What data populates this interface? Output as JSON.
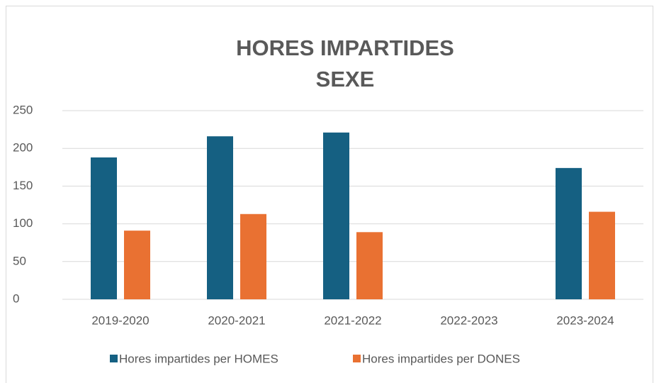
{
  "chart_data": {
    "type": "bar",
    "title": [
      "HORES IMPARTIDES",
      "SEXE"
    ],
    "categories": [
      "2019-2020",
      "2020-2021",
      "2021-2022",
      "2022-2023",
      "2023-2024"
    ],
    "series": [
      {
        "name": "Hores impartides per HOMES",
        "color": "#156082",
        "values": [
          188,
          216,
          221,
          null,
          174
        ]
      },
      {
        "name": "Hores impartides per DONES",
        "color": "#e97132",
        "values": [
          91,
          113,
          89,
          null,
          116
        ]
      }
    ],
    "ylim": [
      0,
      250
    ],
    "yticks": [
      0,
      50,
      100,
      150,
      200,
      250
    ],
    "grid": true,
    "legend": "bottom"
  }
}
